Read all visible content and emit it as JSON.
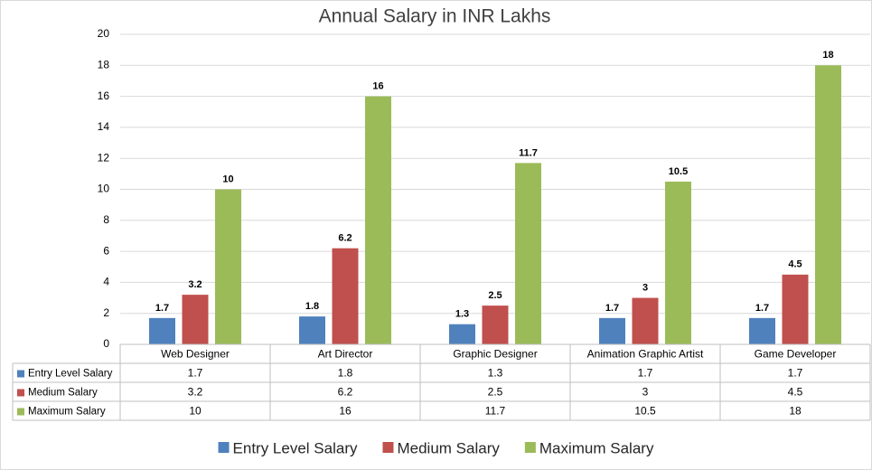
{
  "chart_data": {
    "type": "bar",
    "title": "Annual Salary in INR Lakhs",
    "categories": [
      "Web Designer",
      "Art Director",
      "Graphic Designer",
      "Animation Graphic Artist",
      "Game Developer"
    ],
    "series": [
      {
        "name": "Entry Level Salary",
        "color": "#4f81bd",
        "values": [
          1.7,
          1.8,
          1.3,
          1.7,
          1.7
        ]
      },
      {
        "name": "Medium Salary",
        "color": "#c0504d",
        "values": [
          3.2,
          6.2,
          2.5,
          3,
          4.5
        ]
      },
      {
        "name": "Maximum Salary",
        "color": "#9bbb59",
        "values": [
          10,
          16,
          11.7,
          10.5,
          18
        ]
      }
    ],
    "ylim": [
      0,
      20
    ],
    "yticks": [
      0,
      2,
      4,
      6,
      8,
      10,
      12,
      14,
      16,
      18,
      20
    ],
    "grid": true
  }
}
